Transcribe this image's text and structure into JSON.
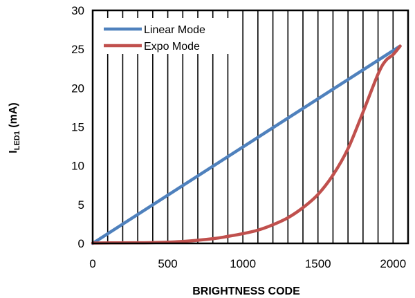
{
  "chart_data": {
    "type": "line",
    "title": "",
    "xlabel": "BRIGHTNESS   CODE",
    "ylabel": {
      "main": "I",
      "sub": "LED1",
      "unit": " (mA)"
    },
    "xlim": [
      0,
      2100
    ],
    "ylim": [
      0,
      30
    ],
    "xticks": [
      0,
      500,
      1000,
      1500,
      2000
    ],
    "yticks": [
      0,
      5,
      10,
      15,
      20,
      25,
      30
    ],
    "vertical_gridlines_step": 100,
    "horizontal_gridlines": false,
    "legend_position": "top-left",
    "series": [
      {
        "name": "Linear Mode",
        "color": "#4F81BD",
        "x": [
          0,
          2047
        ],
        "y": [
          0,
          25.4
        ]
      },
      {
        "name": "Expo Mode",
        "color": "#C0504D",
        "x": [
          0,
          200,
          400,
          600,
          800,
          900,
          1000,
          1100,
          1200,
          1300,
          1400,
          1500,
          1600,
          1700,
          1800,
          1900,
          1950,
          2000,
          2047
        ],
        "y": [
          0.05,
          0.07,
          0.1,
          0.25,
          0.6,
          0.9,
          1.25,
          1.7,
          2.4,
          3.3,
          4.6,
          6.3,
          8.8,
          12.2,
          16.9,
          21.8,
          23.5,
          24.3,
          25.4
        ]
      }
    ]
  }
}
